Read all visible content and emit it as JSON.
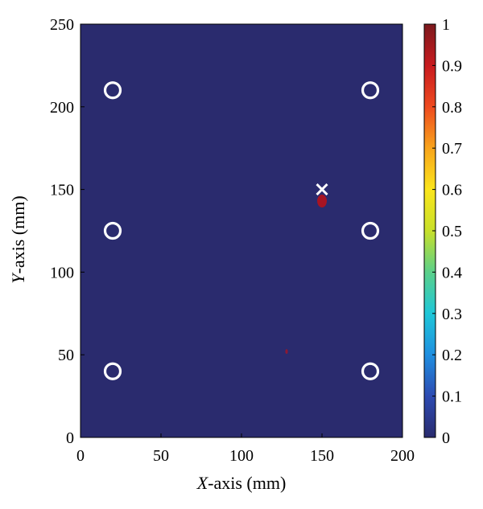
{
  "chart_data": {
    "type": "heatmap",
    "xlabel_italic": "X",
    "xlabel_rest": "-axis (mm)",
    "ylabel_italic": "Y",
    "ylabel_rest": "-axis (mm)",
    "xlim": [
      0,
      200
    ],
    "ylim": [
      0,
      250
    ],
    "xticks": [
      0,
      50,
      100,
      150,
      200
    ],
    "yticks": [
      0,
      50,
      100,
      150,
      200,
      250
    ],
    "background_value": 0,
    "sensors": [
      {
        "x": 20,
        "y": 210
      },
      {
        "x": 180,
        "y": 210
      },
      {
        "x": 20,
        "y": 125
      },
      {
        "x": 180,
        "y": 125
      },
      {
        "x": 20,
        "y": 40
      },
      {
        "x": 180,
        "y": 40
      }
    ],
    "true_source": {
      "x": 150,
      "y": 150
    },
    "hotspots": [
      {
        "x": 150,
        "y": 143,
        "value": 0.9
      },
      {
        "x": 128,
        "y": 52,
        "value": 0.6
      }
    ],
    "colorbar": {
      "min": 0,
      "max": 1,
      "ticks": [
        0,
        0.1,
        0.2,
        0.3,
        0.4,
        0.5,
        0.6,
        0.7,
        0.8,
        0.9,
        1
      ],
      "colormap": [
        "#2a2b6e",
        "#2d4bb2",
        "#1f8fe0",
        "#1fc7d8",
        "#5bd08a",
        "#c8e02a",
        "#fbe51c",
        "#f8a41c",
        "#ee4a1f",
        "#c81b1f",
        "#7c1a1e"
      ]
    },
    "colors": {
      "background": "#2a2b6e",
      "marker": "#ffffff",
      "hotspot": "#b5121b"
    }
  }
}
